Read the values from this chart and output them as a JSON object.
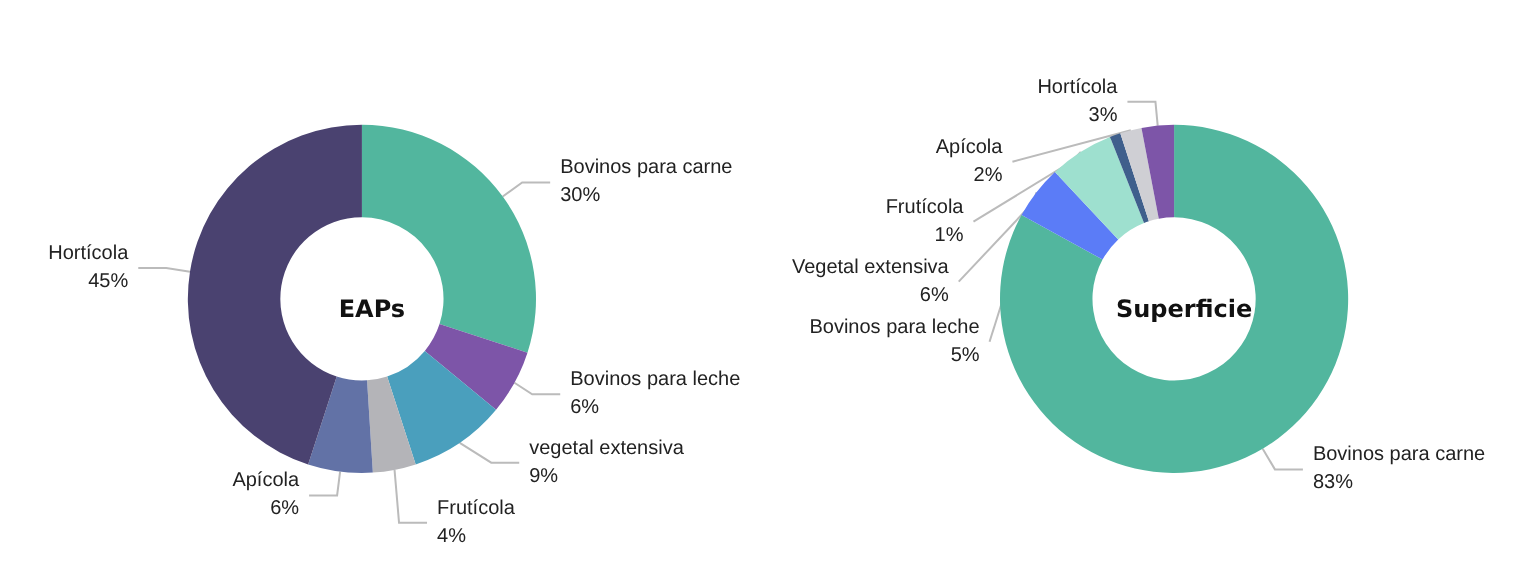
{
  "chart_data": [
    {
      "type": "donut",
      "title": "EAPs",
      "categories": [
        "Bovinos para carne",
        "Bovinos para leche",
        "vegetal extensiva",
        "Frutícola",
        "Apícola",
        "Hortícola"
      ],
      "values": [
        30,
        6,
        9,
        4,
        6,
        45
      ],
      "value_labels": [
        "30%",
        "6%",
        "9%",
        "4%",
        "6%",
        "45%"
      ],
      "colors": [
        "#52b69e",
        "#7d55a8",
        "#4a9fbd",
        "#b4b4b8",
        "#6272a6",
        "#4a4270"
      ],
      "legend": false
    },
    {
      "type": "donut",
      "title": "Superficie",
      "categories": [
        "Bovinos para carne",
        "Bovinos para leche",
        "Vegetal extensiva",
        "Frutícola",
        "Apícola",
        "Hortícola"
      ],
      "values": [
        83,
        5,
        6,
        1,
        2,
        3
      ],
      "value_labels": [
        "83%",
        "5%",
        "6%",
        "1%",
        "2%",
        "3%"
      ],
      "colors": [
        "#52b69e",
        "#5b7cf7",
        "#9ee0cf",
        "#3f5f8c",
        "#cfcfd4",
        "#7d55a8"
      ],
      "legend": false
    }
  ]
}
